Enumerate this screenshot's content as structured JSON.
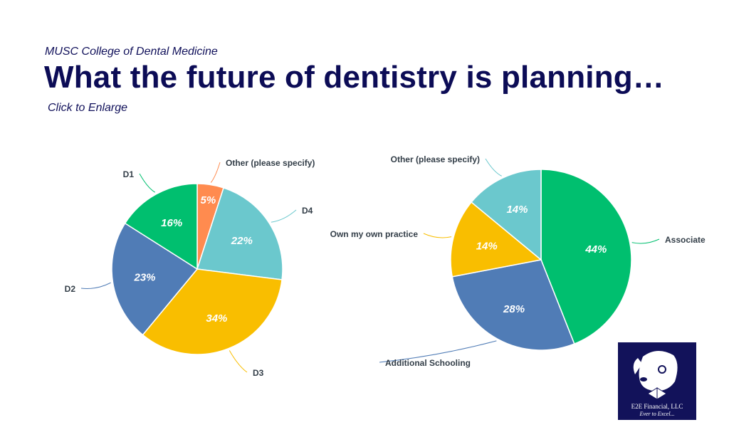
{
  "header": {
    "subtitle": "MUSC College of Dental Medicine",
    "title": "What the future of dentistry is planning…",
    "link": "Click to Enlarge"
  },
  "logo": {
    "name": "E2E Financial, LLC",
    "tagline": "Ever to Excel..."
  },
  "chart_data": [
    {
      "type": "pie",
      "title": "",
      "labels": [
        "Other (please specify)",
        "D4",
        "D3",
        "D2",
        "D1"
      ],
      "values": [
        5,
        22,
        34,
        23,
        16
      ],
      "colors": [
        "#FF8B4F",
        "#6BC8CD",
        "#F9BE00",
        "#507CB6",
        "#00BF6F"
      ],
      "value_labels": [
        "5%",
        "22%",
        "34%",
        "23%",
        "16%"
      ]
    },
    {
      "type": "pie",
      "title": "",
      "labels": [
        "Associate",
        "Additional Schooling",
        "Own my own practice",
        "Other (please specify)"
      ],
      "values": [
        44,
        28,
        14,
        14
      ],
      "colors": [
        "#00BF6F",
        "#507CB6",
        "#F9BE00",
        "#6BC8CD"
      ],
      "value_labels": [
        "44%",
        "28%",
        "14%",
        "14%"
      ]
    }
  ]
}
